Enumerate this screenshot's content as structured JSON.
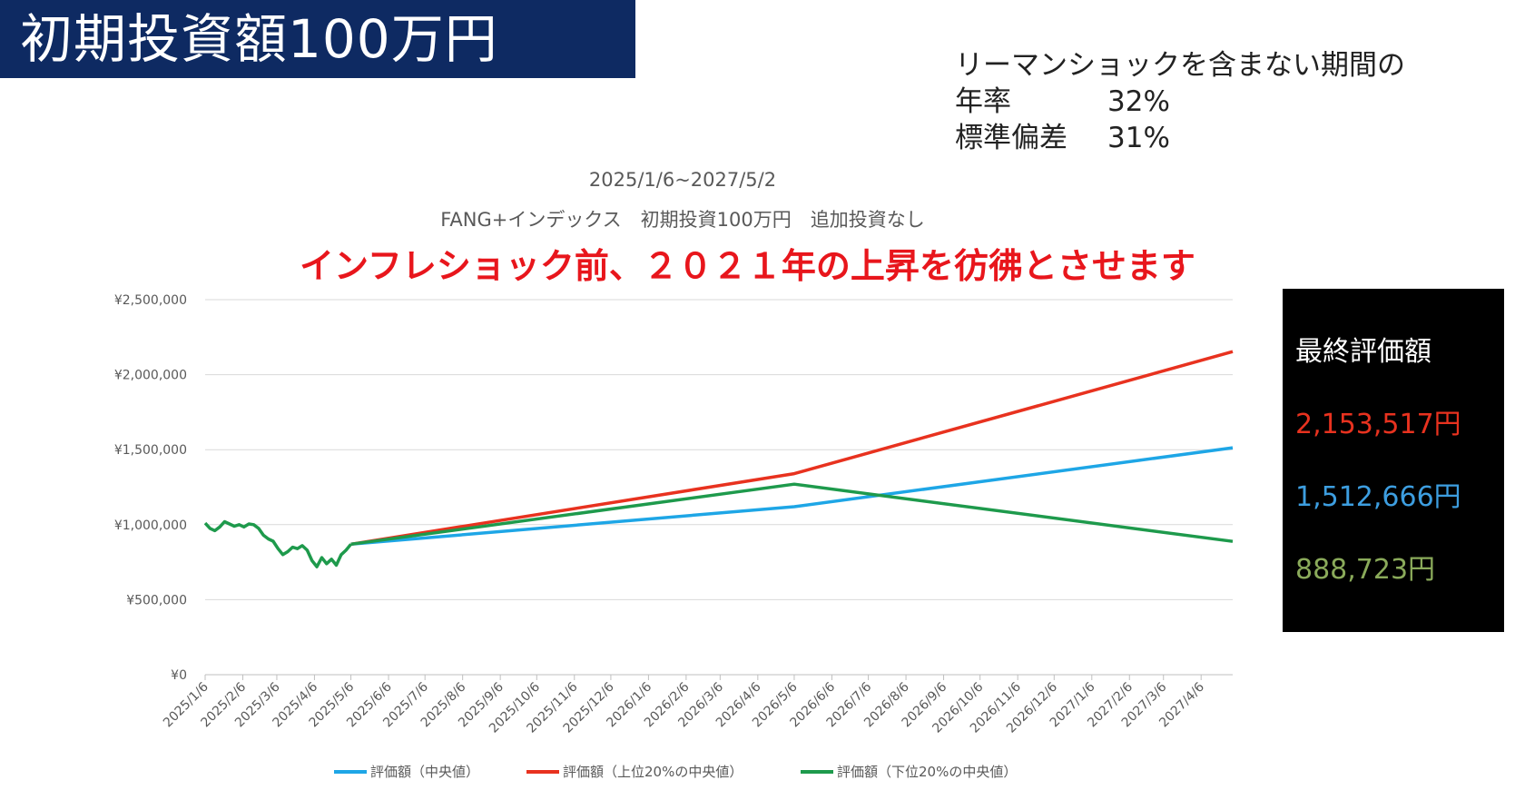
{
  "header": {
    "title": "初期投資額100万円"
  },
  "stats": {
    "heading": "リーマンショックを含まない期間の",
    "rows": [
      {
        "label": "年率",
        "value": "32%"
      },
      {
        "label": "標準偏差",
        "value": "31%"
      }
    ]
  },
  "annotation": {
    "text": "インフレショック前、２０２１年の上昇を彷彿とさせます",
    "color": "#e8161c"
  },
  "final_panel": {
    "heading": "最終評価額",
    "values": [
      {
        "text": "2,153,517円",
        "color": "#e8321f"
      },
      {
        "text": "1,512,666円",
        "color": "#3d9ee0"
      },
      {
        "text": "888,723円",
        "color": "#8aaa5a"
      }
    ]
  },
  "chart_data": {
    "type": "line",
    "title": "2025/1/6~2027/5/2",
    "subtitle": "FANG+インデックス　初期投資100万円　追加投資なし",
    "ylim": [
      0,
      2500000
    ],
    "y_ticks": [
      "¥0",
      "¥500,000",
      "¥1,000,000",
      "¥1,500,000",
      "¥2,000,000",
      "¥2,500,000"
    ],
    "x_ticks": [
      "2025/1/6",
      "2025/2/6",
      "2025/3/6",
      "2025/4/6",
      "2025/5/6",
      "2025/6/6",
      "2025/7/6",
      "2025/8/6",
      "2025/9/6",
      "2025/10/6",
      "2025/11/6",
      "2025/12/6",
      "2026/1/6",
      "2026/2/6",
      "2026/3/6",
      "2026/4/6",
      "2026/5/6",
      "2026/6/6",
      "2026/7/6",
      "2026/8/6",
      "2026/9/6",
      "2026/10/6",
      "2026/11/6",
      "2026/12/6",
      "2027/1/6",
      "2027/2/6",
      "2027/3/6",
      "2027/4/6"
    ],
    "x_range": [
      "2025/1/6",
      "2027/5/2"
    ],
    "grid": true,
    "legend_position": "bottom",
    "history": {
      "name": "評価額（下位20%の中央値）",
      "color": "#1e9a4c",
      "points": [
        [
          "2025/1/6",
          1010000
        ],
        [
          "2025/1/10",
          975000
        ],
        [
          "2025/1/14",
          960000
        ],
        [
          "2025/1/18",
          985000
        ],
        [
          "2025/1/22",
          1020000
        ],
        [
          "2025/1/26",
          1005000
        ],
        [
          "2025/1/30",
          990000
        ],
        [
          "2025/2/3",
          1000000
        ],
        [
          "2025/2/7",
          985000
        ],
        [
          "2025/2/11",
          1005000
        ],
        [
          "2025/2/15",
          1000000
        ],
        [
          "2025/2/19",
          975000
        ],
        [
          "2025/2/23",
          930000
        ],
        [
          "2025/2/27",
          905000
        ],
        [
          "2025/3/3",
          890000
        ],
        [
          "2025/3/7",
          840000
        ],
        [
          "2025/3/11",
          800000
        ],
        [
          "2025/3/15",
          820000
        ],
        [
          "2025/3/19",
          850000
        ],
        [
          "2025/3/23",
          840000
        ],
        [
          "2025/3/27",
          860000
        ],
        [
          "2025/3/31",
          830000
        ],
        [
          "2025/4/4",
          760000
        ],
        [
          "2025/4/8",
          720000
        ],
        [
          "2025/4/12",
          780000
        ],
        [
          "2025/4/16",
          740000
        ],
        [
          "2025/4/20",
          770000
        ],
        [
          "2025/4/24",
          730000
        ],
        [
          "2025/4/28",
          800000
        ],
        [
          "2025/5/2",
          830000
        ],
        [
          "2025/5/6",
          870000
        ]
      ]
    },
    "series": [
      {
        "name": "評価額（中央値）",
        "color": "#1ea6e6",
        "points": [
          [
            "2025/5/6",
            870000
          ],
          [
            "2026/5/6",
            1120000
          ],
          [
            "2027/5/2",
            1512666
          ]
        ]
      },
      {
        "name": "評価額（上位20%の中央値）",
        "color": "#e8321f",
        "points": [
          [
            "2025/5/6",
            870000
          ],
          [
            "2026/5/6",
            1340000
          ],
          [
            "2027/5/2",
            2153517
          ]
        ]
      },
      {
        "name": "評価額（下位20%の中央値）",
        "color": "#1e9a4c",
        "points": [
          [
            "2025/5/6",
            870000
          ],
          [
            "2026/5/6",
            1270000
          ],
          [
            "2027/5/2",
            888723
          ]
        ]
      }
    ]
  }
}
